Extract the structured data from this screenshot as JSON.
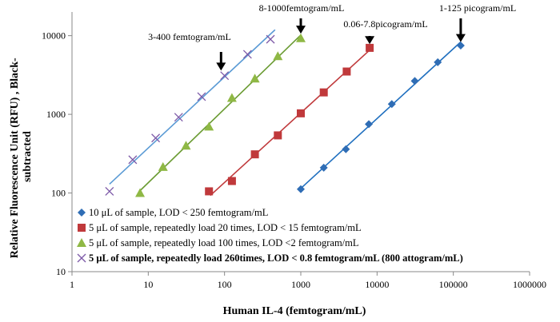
{
  "chart_data": {
    "type": "scatter",
    "xscale": "log",
    "yscale": "log",
    "xlim": [
      1,
      1000000
    ],
    "ylim": [
      10,
      20000
    ],
    "xlabel": "Human IL-4 (femtogram/mL)",
    "ylabel": "Relative Fluorescence Unit (RFU) , Black-subtracted",
    "ylabel_lines": [
      "Relative Fluorescence Unit (RFU) , Black-",
      "subtracted"
    ],
    "x_ticks": [
      {
        "value": 1,
        "label": "1"
      },
      {
        "value": 10,
        "label": "10"
      },
      {
        "value": 100,
        "label": "100"
      },
      {
        "value": 1000,
        "label": "1000"
      },
      {
        "value": 10000,
        "label": "10000"
      },
      {
        "value": 100000,
        "label": "100000"
      },
      {
        "value": 1000000,
        "label": "1000000"
      }
    ],
    "y_ticks": [
      {
        "value": 10,
        "label": "10"
      },
      {
        "value": 100,
        "label": "100"
      },
      {
        "value": 1000,
        "label": "1000"
      },
      {
        "value": 10000,
        "label": "10000"
      }
    ],
    "grid": false,
    "legend_position": "bottom-left inside plot",
    "series": [
      {
        "name": "10 μL of sample, LOD < 250 femtogram/mL",
        "marker": "diamond",
        "color": "#2f6db5",
        "line_color": "#1f6fbf",
        "bold": false,
        "x": [
          1000,
          2000,
          3900,
          7800,
          15600,
          31250,
          62500,
          125000
        ],
        "y": [
          112,
          210,
          360,
          750,
          1350,
          2650,
          4600,
          7500
        ],
        "fit_x": [
          950,
          125000
        ]
      },
      {
        "name": "5 μL of sample, repeatedly load 20 times, LOD < 15 femtogram/mL",
        "marker": "square",
        "color": "#c0393b",
        "line_color": "#c0393b",
        "bold": false,
        "x": [
          62.5,
          125,
          250,
          500,
          1000,
          2000,
          4000,
          8000
        ],
        "y": [
          105,
          142,
          310,
          540,
          1030,
          1900,
          3500,
          7000
        ],
        "fit_x": [
          65,
          8000
        ]
      },
      {
        "name": "5 μL of sample, repeatedly load 100 times, LOD <2 femtogram/mL",
        "marker": "triangle",
        "color": "#8fb845",
        "line_color": "#6a9b32",
        "bold": false,
        "x": [
          7.8,
          15.6,
          31.25,
          62.5,
          125,
          250,
          500,
          1000
        ],
        "y": [
          100,
          215,
          400,
          700,
          1620,
          2850,
          5500,
          9300
        ],
        "fit_x": [
          7.8,
          1000
        ]
      },
      {
        "name": "5 μL of sample, repeatedly load 260times, LOD < 0.8 femtogram/mL (800 attogram/mL)",
        "marker": "x",
        "color": "#7d5aa8",
        "line_color": "#5b9bd5",
        "bold": true,
        "x": [
          3.1,
          6.25,
          12.5,
          25,
          50,
          100,
          200,
          400
        ],
        "y": [
          105,
          265,
          500,
          920,
          1680,
          3100,
          5800,
          9000
        ],
        "fit_x": [
          3.1,
          460
        ]
      }
    ],
    "annotations": [
      {
        "text": "3-400 femtogram/mL",
        "arrow_x": 90,
        "arrow_y": 3600
      },
      {
        "text": "8-1000femtogram/mL",
        "arrow_x": 1000,
        "arrow_y": 10600
      },
      {
        "text": "0.06-7.8picogram/mL",
        "arrow_x": 8000,
        "arrow_y": 7800
      },
      {
        "text": "1-125 picogram/mL",
        "arrow_x": 125000,
        "arrow_y": 8300
      }
    ]
  }
}
